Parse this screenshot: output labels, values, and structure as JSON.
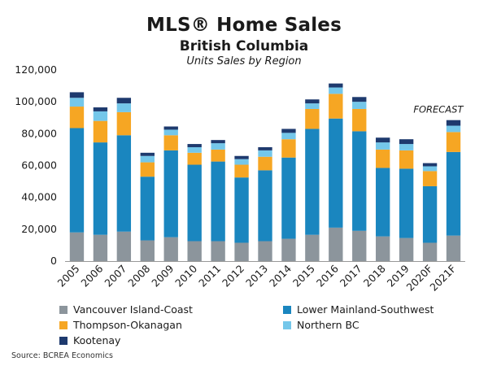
{
  "chart_data": {
    "type": "bar",
    "stacked": true,
    "title": "MLS® Home Sales",
    "subtitle": "British Columbia",
    "caption": "Units Sales by Region",
    "annotation": "FORECAST",
    "categories": [
      "2005",
      "2006",
      "2007",
      "2008",
      "2009",
      "2010",
      "2011",
      "2012",
      "2013",
      "2014",
      "2015",
      "2016",
      "2017",
      "2018",
      "2019",
      "2020F",
      "2021F"
    ],
    "series": [
      {
        "name": "Vancouver Island-Coast",
        "color": "#8c959c",
        "values": [
          18000,
          16500,
          18500,
          13000,
          15000,
          12500,
          12500,
          11500,
          12500,
          14000,
          16500,
          21000,
          19000,
          15500,
          14500,
          11500,
          16000
        ]
      },
      {
        "name": "Lower Mainland-Southwest",
        "color": "#1a86bf",
        "values": [
          65500,
          58000,
          60500,
          40000,
          54500,
          48000,
          50000,
          41000,
          44500,
          51000,
          66500,
          68500,
          62500,
          43000,
          43500,
          35500,
          52500
        ]
      },
      {
        "name": "Thompson-Okanagan",
        "color": "#f6a623",
        "values": [
          13500,
          13500,
          14500,
          9000,
          9500,
          7500,
          7500,
          8000,
          8500,
          11500,
          12500,
          15500,
          14000,
          11500,
          11500,
          9500,
          12500
        ]
      },
      {
        "name": "Northern BC",
        "color": "#74c7ea",
        "values": [
          5500,
          6000,
          5500,
          4000,
          3500,
          3500,
          4000,
          3500,
          4000,
          4000,
          3500,
          4000,
          4500,
          4500,
          4000,
          3000,
          4000
        ]
      },
      {
        "name": "Kootenay",
        "color": "#1e3a6e",
        "values": [
          3500,
          2500,
          3500,
          2000,
          2000,
          2000,
          2000,
          2000,
          2000,
          2500,
          2500,
          2500,
          3000,
          3000,
          3000,
          2000,
          3500
        ]
      }
    ],
    "ylim": [
      0,
      120000
    ],
    "yticks": [
      0,
      20000,
      40000,
      60000,
      80000,
      100000,
      120000
    ],
    "ytick_labels": [
      "0",
      "20,000",
      "40,000",
      "60,000",
      "80,000",
      "100,000",
      "120,000"
    ],
    "grid": false,
    "legend": "bottom"
  },
  "source": "Source: BCREA Economics"
}
